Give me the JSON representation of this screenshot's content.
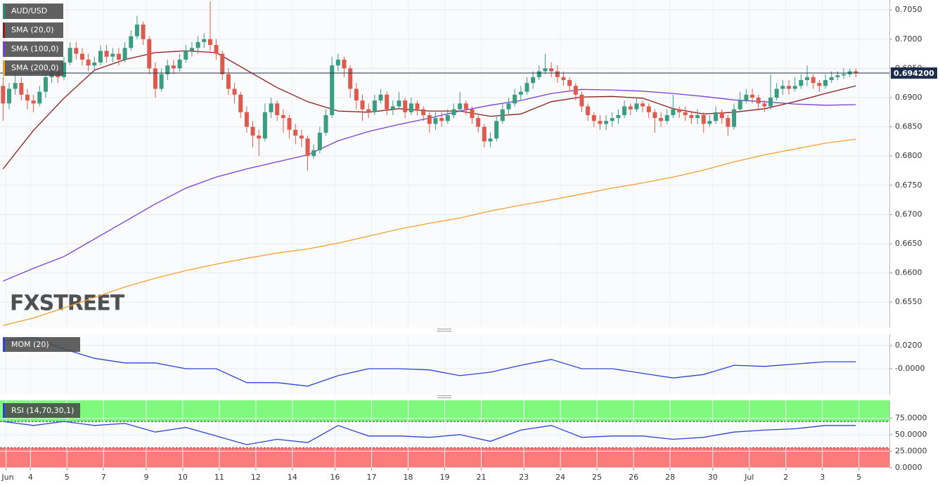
{
  "chart_data": [
    {
      "type": "candlestick",
      "title": "AUD/USD",
      "up_color": "#3a9c80",
      "down_color": "#dd5a4c",
      "open": [
        0.692,
        0.689,
        0.6915,
        0.6925,
        0.6905,
        0.6895,
        0.689,
        0.691,
        0.6935,
        0.6945,
        0.6935,
        0.696,
        0.6985,
        0.6975,
        0.6965,
        0.6955,
        0.696,
        0.698,
        0.697,
        0.6975,
        0.6965,
        0.6985,
        0.7005,
        0.7025,
        0.7,
        0.695,
        0.6915,
        0.694,
        0.6955,
        0.695,
        0.6965,
        0.698,
        0.6985,
        0.6995,
        0.7,
        0.699,
        0.6975,
        0.694,
        0.6915,
        0.6905,
        0.6875,
        0.685,
        0.6835,
        0.683,
        0.6875,
        0.689,
        0.687,
        0.6865,
        0.6845,
        0.6835,
        0.683,
        0.68,
        0.681,
        0.684,
        0.687,
        0.6955,
        0.6965,
        0.695,
        0.6915,
        0.6895,
        0.688,
        0.6875,
        0.6895,
        0.6905,
        0.688,
        0.6885,
        0.6895,
        0.6875,
        0.689,
        0.688,
        0.687,
        0.6855,
        0.6865,
        0.686,
        0.687,
        0.688,
        0.689,
        0.688,
        0.6865,
        0.685,
        0.6825,
        0.683,
        0.686,
        0.688,
        0.689,
        0.6905,
        0.691,
        0.6925,
        0.6935,
        0.6945,
        0.695,
        0.6945,
        0.6935,
        0.693,
        0.692,
        0.6905,
        0.6885,
        0.687,
        0.686,
        0.6855,
        0.686,
        0.6865,
        0.687,
        0.6885,
        0.688,
        0.689,
        0.6885,
        0.6875,
        0.6865,
        0.686,
        0.687,
        0.688,
        0.6875,
        0.687,
        0.6865,
        0.687,
        0.6855,
        0.686,
        0.6875,
        0.6865,
        0.685,
        0.688,
        0.6895,
        0.6905,
        0.69,
        0.689,
        0.6885,
        0.69,
        0.6915,
        0.692,
        0.6915,
        0.692,
        0.693,
        0.6935,
        0.6925,
        0.692,
        0.693,
        0.6935,
        0.6938,
        0.694,
        0.6945
      ],
      "close": [
        0.689,
        0.6915,
        0.6925,
        0.6905,
        0.6895,
        0.689,
        0.691,
        0.6935,
        0.6945,
        0.6935,
        0.696,
        0.6985,
        0.6975,
        0.6965,
        0.6955,
        0.696,
        0.698,
        0.697,
        0.6975,
        0.6965,
        0.6985,
        0.7005,
        0.7025,
        0.7,
        0.695,
        0.6915,
        0.694,
        0.6955,
        0.695,
        0.6965,
        0.698,
        0.6985,
        0.6995,
        0.7,
        0.699,
        0.6975,
        0.694,
        0.6915,
        0.6905,
        0.6875,
        0.685,
        0.6835,
        0.683,
        0.6875,
        0.689,
        0.687,
        0.6865,
        0.6845,
        0.6835,
        0.683,
        0.68,
        0.681,
        0.684,
        0.687,
        0.6955,
        0.6965,
        0.695,
        0.6915,
        0.6895,
        0.688,
        0.6875,
        0.6895,
        0.6905,
        0.688,
        0.6885,
        0.6895,
        0.6875,
        0.689,
        0.688,
        0.687,
        0.6855,
        0.6865,
        0.686,
        0.687,
        0.688,
        0.689,
        0.688,
        0.6865,
        0.685,
        0.6825,
        0.683,
        0.686,
        0.688,
        0.689,
        0.6905,
        0.691,
        0.6925,
        0.6935,
        0.6945,
        0.695,
        0.6945,
        0.6935,
        0.693,
        0.692,
        0.6905,
        0.6885,
        0.687,
        0.686,
        0.6855,
        0.686,
        0.6865,
        0.687,
        0.6885,
        0.688,
        0.689,
        0.6885,
        0.6875,
        0.6865,
        0.686,
        0.687,
        0.688,
        0.6875,
        0.687,
        0.6865,
        0.687,
        0.6855,
        0.686,
        0.6875,
        0.6865,
        0.685,
        0.688,
        0.6895,
        0.6905,
        0.69,
        0.689,
        0.6885,
        0.69,
        0.6915,
        0.692,
        0.6915,
        0.692,
        0.693,
        0.6935,
        0.6925,
        0.692,
        0.693,
        0.6935,
        0.6938,
        0.694,
        0.6945,
        0.6942
      ],
      "high": [
        0.6935,
        0.6925,
        0.694,
        0.6935,
        0.6915,
        0.6905,
        0.692,
        0.6945,
        0.6955,
        0.6955,
        0.697,
        0.6995,
        0.6995,
        0.6985,
        0.6975,
        0.697,
        0.699,
        0.699,
        0.6985,
        0.6985,
        0.6995,
        0.7015,
        0.704,
        0.703,
        0.7005,
        0.696,
        0.695,
        0.6965,
        0.6965,
        0.6975,
        0.699,
        0.6995,
        0.7005,
        0.701,
        0.7065,
        0.7,
        0.698,
        0.695,
        0.6925,
        0.691,
        0.6885,
        0.686,
        0.6845,
        0.689,
        0.69,
        0.6895,
        0.688,
        0.687,
        0.6855,
        0.6845,
        0.6835,
        0.682,
        0.685,
        0.688,
        0.697,
        0.6975,
        0.697,
        0.6955,
        0.6925,
        0.6905,
        0.689,
        0.6905,
        0.6915,
        0.691,
        0.6895,
        0.691,
        0.69,
        0.69,
        0.6895,
        0.6885,
        0.6875,
        0.6875,
        0.6875,
        0.688,
        0.689,
        0.691,
        0.6895,
        0.6885,
        0.687,
        0.6855,
        0.684,
        0.687,
        0.689,
        0.69,
        0.6915,
        0.692,
        0.6935,
        0.6945,
        0.6955,
        0.6975,
        0.696,
        0.6955,
        0.6945,
        0.6935,
        0.6925,
        0.691,
        0.689,
        0.6875,
        0.687,
        0.687,
        0.6875,
        0.688,
        0.6895,
        0.689,
        0.69,
        0.6895,
        0.689,
        0.688,
        0.6875,
        0.688,
        0.6905,
        0.6885,
        0.6885,
        0.6875,
        0.688,
        0.6875,
        0.687,
        0.6885,
        0.688,
        0.687,
        0.689,
        0.691,
        0.6915,
        0.6915,
        0.6905,
        0.6895,
        0.694,
        0.6925,
        0.693,
        0.693,
        0.6935,
        0.694,
        0.6955,
        0.694,
        0.693,
        0.694,
        0.6945,
        0.6945,
        0.695,
        0.695,
        0.695
      ],
      "low": [
        0.686,
        0.688,
        0.6905,
        0.6895,
        0.688,
        0.6875,
        0.6885,
        0.69,
        0.6925,
        0.6925,
        0.693,
        0.6955,
        0.6965,
        0.6955,
        0.6945,
        0.6945,
        0.6955,
        0.696,
        0.696,
        0.6955,
        0.696,
        0.698,
        0.7,
        0.699,
        0.694,
        0.69,
        0.691,
        0.693,
        0.694,
        0.6945,
        0.696,
        0.697,
        0.6975,
        0.6985,
        0.698,
        0.6965,
        0.693,
        0.6905,
        0.689,
        0.6865,
        0.684,
        0.6815,
        0.68,
        0.6825,
        0.6865,
        0.686,
        0.684,
        0.683,
        0.682,
        0.6815,
        0.6775,
        0.6795,
        0.6805,
        0.6835,
        0.6865,
        0.6945,
        0.6935,
        0.69,
        0.688,
        0.686,
        0.6865,
        0.687,
        0.689,
        0.687,
        0.687,
        0.688,
        0.6865,
        0.687,
        0.687,
        0.686,
        0.684,
        0.6845,
        0.685,
        0.6855,
        0.6865,
        0.6875,
        0.687,
        0.6855,
        0.684,
        0.6815,
        0.6815,
        0.6825,
        0.6855,
        0.687,
        0.6885,
        0.6895,
        0.6905,
        0.6915,
        0.693,
        0.694,
        0.6935,
        0.6925,
        0.692,
        0.691,
        0.6895,
        0.6875,
        0.686,
        0.685,
        0.6845,
        0.6845,
        0.685,
        0.6855,
        0.6865,
        0.687,
        0.6875,
        0.6875,
        0.6865,
        0.684,
        0.685,
        0.6855,
        0.6865,
        0.6865,
        0.686,
        0.6855,
        0.6855,
        0.684,
        0.685,
        0.6855,
        0.6855,
        0.6835,
        0.6845,
        0.6875,
        0.689,
        0.689,
        0.688,
        0.6875,
        0.688,
        0.6895,
        0.6905,
        0.6905,
        0.691,
        0.6915,
        0.692,
        0.6915,
        0.691,
        0.6915,
        0.6925,
        0.693,
        0.6932,
        0.6935,
        0.6935
      ],
      "series": [
        {
          "name": "SMA (20,0)",
          "color": "#8e1c1c",
          "x": [
            0,
            5,
            10,
            15,
            20,
            25,
            30,
            35,
            40,
            45,
            50,
            55,
            60,
            65,
            70,
            75,
            80,
            85,
            90,
            95,
            100,
            105,
            110,
            115,
            120,
            125,
            130,
            135,
            140
          ],
          "values": [
            0.6778,
            0.6844,
            0.6899,
            0.6947,
            0.6965,
            0.6977,
            0.698,
            0.6977,
            0.6947,
            0.6917,
            0.6893,
            0.6877,
            0.6875,
            0.6881,
            0.6877,
            0.6877,
            0.6868,
            0.6872,
            0.6893,
            0.6901,
            0.6902,
            0.6899,
            0.6881,
            0.6872,
            0.6875,
            0.6881,
            0.6893,
            0.6907,
            0.692
          ]
        },
        {
          "name": "SMA (100,0)",
          "color": "#7a3fd8",
          "x": [
            0,
            5,
            10,
            15,
            20,
            25,
            30,
            35,
            40,
            45,
            50,
            55,
            60,
            65,
            70,
            75,
            80,
            85,
            90,
            95,
            100,
            105,
            110,
            115,
            120,
            125,
            130,
            135,
            140
          ],
          "values": [
            0.6586,
            0.6608,
            0.6628,
            0.6658,
            0.6688,
            0.6718,
            0.6745,
            0.6764,
            0.6778,
            0.679,
            0.6802,
            0.6826,
            0.6842,
            0.6854,
            0.6865,
            0.6877,
            0.6887,
            0.6895,
            0.6907,
            0.6914,
            0.6913,
            0.6911,
            0.6907,
            0.6902,
            0.6896,
            0.6893,
            0.6889,
            0.6887,
            0.6888
          ]
        },
        {
          "name": "SMA (200,0)",
          "color": "#f5a031",
          "x": [
            0,
            5,
            10,
            15,
            20,
            25,
            30,
            35,
            40,
            45,
            50,
            55,
            60,
            65,
            70,
            75,
            80,
            85,
            90,
            95,
            100,
            105,
            110,
            115,
            120,
            125,
            130,
            135,
            140
          ],
          "values": [
            0.651,
            0.6523,
            0.654,
            0.6558,
            0.6576,
            0.6591,
            0.6604,
            0.6615,
            0.6625,
            0.6634,
            0.6641,
            0.6651,
            0.6663,
            0.6675,
            0.6685,
            0.6694,
            0.6706,
            0.6716,
            0.6725,
            0.6735,
            0.6745,
            0.6754,
            0.6764,
            0.6776,
            0.679,
            0.6802,
            0.6812,
            0.6822,
            0.6829
          ]
        }
      ],
      "last_price": {
        "value": 0.6942,
        "label": "0.694200"
      },
      "watermark": "FXSTREET",
      "xlim": [
        -0.5,
        145.5
      ],
      "ylim": [
        0.6507,
        0.7067
      ],
      "yticks": [
        {
          "value": 0.655,
          "label": "0.6550"
        },
        {
          "value": 0.66,
          "label": "0.6600"
        },
        {
          "value": 0.665,
          "label": "0.6650"
        },
        {
          "value": 0.67,
          "label": "0.6700"
        },
        {
          "value": 0.675,
          "label": "0.6750"
        },
        {
          "value": 0.68,
          "label": "0.6800"
        },
        {
          "value": 0.685,
          "label": "0.6850"
        },
        {
          "value": 0.69,
          "label": "0.6900"
        },
        {
          "value": 0.695,
          "label": "0.6950"
        },
        {
          "value": 0.7,
          "label": "0.7000"
        },
        {
          "value": 0.705,
          "label": "0.7050"
        }
      ],
      "grid": true
    },
    {
      "type": "line",
      "series": [
        {
          "name": "MOM (20)",
          "color": "#2a45d6",
          "x": [
            0,
            5,
            10,
            15,
            20,
            25,
            30,
            35,
            40,
            45,
            50,
            55,
            60,
            65,
            70,
            75,
            80,
            85,
            90,
            95,
            100,
            105,
            110,
            115,
            120,
            125,
            130,
            135,
            140
          ],
          "values": [
            0.024,
            0.027,
            0.017,
            0.009,
            0.005,
            0.005,
            0.0,
            0.0,
            -0.012,
            -0.012,
            -0.015,
            -0.006,
            0.0,
            0.0,
            -0.001,
            -0.006,
            -0.003,
            0.003,
            0.008,
            0.0,
            0.0,
            -0.004,
            -0.008,
            -0.005,
            0.003,
            0.002,
            0.004,
            0.006,
            0.006
          ]
        }
      ],
      "xlim": [
        -0.5,
        145.5
      ],
      "ylim": [
        -0.0224,
        0.0297
      ],
      "yticks": [
        {
          "value": 0,
          "label": "-0.0000"
        },
        {
          "value": 0.02,
          "label": "0.0200"
        }
      ],
      "grid": true
    },
    {
      "type": "line",
      "series": [
        {
          "name": "RSI (14,70,30,1)",
          "color": "#2a45d6",
          "x": [
            0,
            5,
            10,
            15,
            20,
            25,
            30,
            35,
            40,
            45,
            50,
            55,
            60,
            65,
            70,
            75,
            80,
            85,
            90,
            95,
            100,
            105,
            110,
            115,
            120,
            125,
            130,
            135,
            140
          ],
          "values": [
            70,
            64,
            70,
            64,
            67,
            54,
            61,
            48,
            35,
            43,
            38,
            64,
            48,
            48,
            46,
            50,
            40,
            57,
            64,
            46,
            48,
            48,
            43,
            46,
            54,
            57,
            59,
            64,
            64
          ]
        }
      ],
      "upper_band": 70,
      "lower_band": 30,
      "upper_color": "#7ef97e",
      "lower_color": "#fd7b7b",
      "xlim": [
        -0.5,
        145.5
      ],
      "ylim": [
        0,
        102
      ],
      "yticks": [
        {
          "value": 0,
          "label": "0.0000"
        },
        {
          "value": 25,
          "label": "25.0000"
        },
        {
          "value": 50,
          "label": "50.0000"
        },
        {
          "value": 75,
          "label": "75.0000"
        }
      ],
      "xticks": [
        {
          "value": 0.5,
          "label": "Jun"
        },
        {
          "value": 4.5,
          "label": "4"
        },
        {
          "value": 10.5,
          "label": "5"
        },
        {
          "value": 16.5,
          "label": "7"
        },
        {
          "value": 23.5,
          "label": "9"
        },
        {
          "value": 29.5,
          "label": "10"
        },
        {
          "value": 35.5,
          "label": "11"
        },
        {
          "value": 41.5,
          "label": "12"
        },
        {
          "value": 47.5,
          "label": "14"
        },
        {
          "value": 54.5,
          "label": "16"
        },
        {
          "value": 60.5,
          "label": "17"
        },
        {
          "value": 66.5,
          "label": "18"
        },
        {
          "value": 72.5,
          "label": "19"
        },
        {
          "value": 78.5,
          "label": "21"
        },
        {
          "value": 85.5,
          "label": "23"
        },
        {
          "value": 91.5,
          "label": "24"
        },
        {
          "value": 97.5,
          "label": "25"
        },
        {
          "value": 103.5,
          "label": "26"
        },
        {
          "value": 109.5,
          "label": "28"
        },
        {
          "value": 116.5,
          "label": "30"
        },
        {
          "value": 122.5,
          "label": "Jul"
        },
        {
          "value": 128.5,
          "label": "2"
        },
        {
          "value": 134.5,
          "label": "3"
        },
        {
          "value": 140.5,
          "label": "5"
        }
      ],
      "grid": true
    }
  ]
}
